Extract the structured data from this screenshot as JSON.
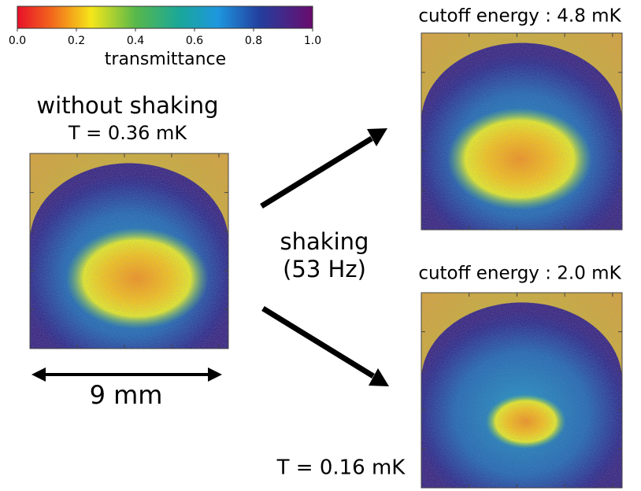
{
  "colorbar": {
    "label": "transmittance",
    "ticks": [
      {
        "value": 0,
        "label": "0.0"
      },
      {
        "value": 0.2,
        "label": "0.2"
      },
      {
        "value": 0.4,
        "label": "0.4"
      },
      {
        "value": 0.6,
        "label": "0.6"
      },
      {
        "value": 0.8,
        "label": "0.8"
      },
      {
        "value": 1,
        "label": "1.0"
      }
    ]
  },
  "left_panel": {
    "title": "without shaking",
    "subtitle": "T = 0.36 mK",
    "scale_label": "9 mm"
  },
  "center": {
    "label": "shaking",
    "sublabel": "(53 Hz)"
  },
  "top_right_panel": {
    "title": "cutoff energy : 4.8 mK"
  },
  "bottom_right_panel": {
    "title": "cutoff energy : 2.0 mK",
    "caption": "T = 0.16 mK"
  }
}
